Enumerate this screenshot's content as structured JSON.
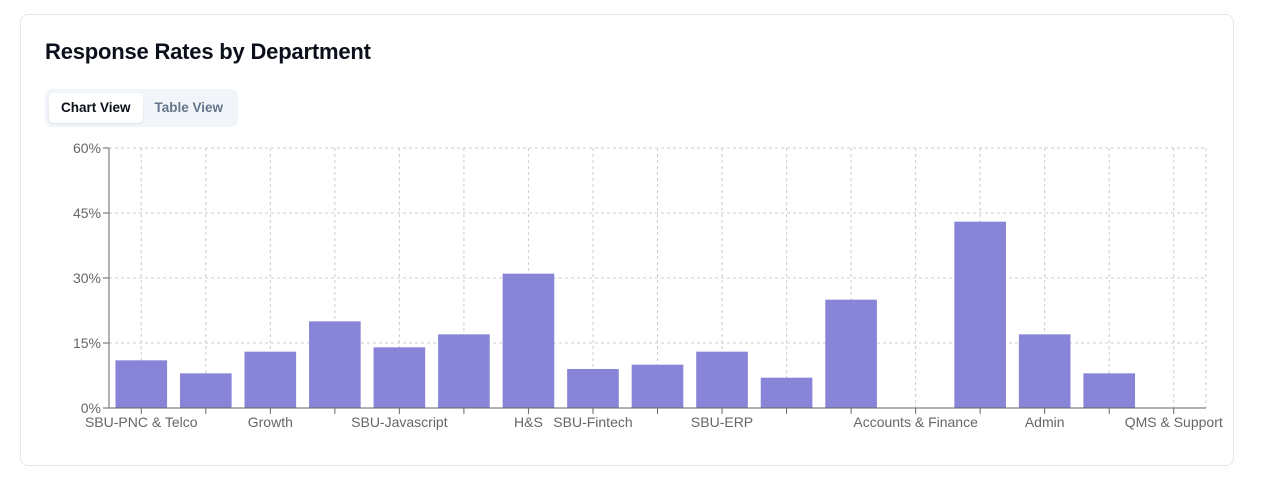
{
  "card": {
    "title": "Response Rates by Department",
    "tabs": [
      {
        "label": "Chart View",
        "active": true
      },
      {
        "label": "Table View",
        "active": false
      }
    ]
  },
  "colors": {
    "bar": "#8884d8",
    "grid": "#cccccc",
    "axis": "#666666",
    "tick_text": "#666666"
  },
  "chart_data": {
    "type": "bar",
    "title": "",
    "xlabel": "",
    "ylabel": "",
    "ylim": [
      0,
      60
    ],
    "y_ticks": [
      "0%",
      "15%",
      "30%",
      "45%",
      "60%"
    ],
    "y_tick_values": [
      0,
      15,
      30,
      45,
      60
    ],
    "categories": [
      "SBU-PNC & Telco",
      "",
      "Growth",
      "",
      "SBU-Javascript",
      "",
      "H&S",
      "SBU-Fintech",
      "",
      "SBU-ERP",
      "",
      "",
      "Accounts & Finance",
      "",
      "Admin",
      "",
      "QMS & Support"
    ],
    "values": [
      11,
      8,
      13,
      20,
      14,
      17,
      31,
      9,
      10,
      13,
      7,
      25,
      0,
      43,
      17,
      8,
      0
    ],
    "unit": "%",
    "grid": true,
    "legend": false
  }
}
